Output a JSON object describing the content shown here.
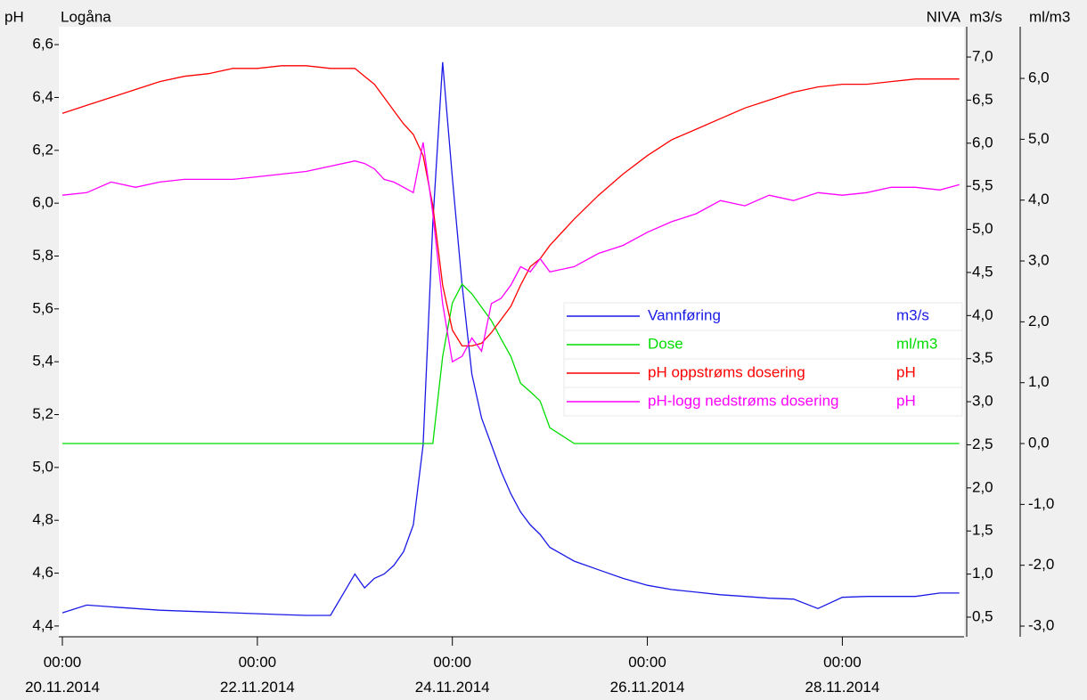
{
  "chart_data": {
    "type": "line",
    "left_title": "pH",
    "title": "Logåna",
    "source": "NIVA",
    "y2_title": "m3/s",
    "y3_title": "ml/m3",
    "x": [
      0,
      0.25,
      0.5,
      0.75,
      1,
      1.25,
      1.5,
      1.75,
      2,
      2.25,
      2.5,
      2.75,
      3,
      3.1,
      3.2,
      3.3,
      3.4,
      3.5,
      3.6,
      3.7,
      3.8,
      3.9,
      4,
      4.1,
      4.2,
      4.3,
      4.4,
      4.5,
      4.6,
      4.7,
      4.8,
      4.9,
      5,
      5.25,
      5.5,
      5.75,
      6,
      6.25,
      6.5,
      6.75,
      7,
      7.25,
      7.5,
      7.75,
      8,
      8.25,
      8.5,
      8.75,
      9,
      9.2
    ],
    "xlim": [
      0,
      9.23
    ],
    "xticks": [
      {
        "value": 0,
        "label": "00:00 20.11.2014"
      },
      {
        "value": 2,
        "label": "00:00 22.11.2014"
      },
      {
        "value": 4,
        "label": "00:00 24.11.2014"
      },
      {
        "value": 6,
        "label": "00:00 26.11.2014"
      },
      {
        "value": 8,
        "label": "00:00 28.11.2014"
      }
    ],
    "ylim": [
      4.366,
      6.661
    ],
    "yticks": [
      {
        "value": 4.4,
        "label": "4,4"
      },
      {
        "value": 4.6,
        "label": "4,6"
      },
      {
        "value": 4.8,
        "label": "4,8"
      },
      {
        "value": 5.0,
        "label": "5,0"
      },
      {
        "value": 5.2,
        "label": "5,2"
      },
      {
        "value": 5.4,
        "label": "5,4"
      },
      {
        "value": 5.6,
        "label": "5,6"
      },
      {
        "value": 5.8,
        "label": "5,8"
      },
      {
        "value": 6.0,
        "label": "6,0"
      },
      {
        "value": 6.2,
        "label": "6,2"
      },
      {
        "value": 6.4,
        "label": "6,4"
      },
      {
        "value": 6.6,
        "label": "6,6"
      }
    ],
    "y2lim": [
      0.293,
      7.331
    ],
    "y2ticks": [
      {
        "value": 0.5,
        "label": "0,5"
      },
      {
        "value": 1.0,
        "label": "1,0"
      },
      {
        "value": 1.5,
        "label": "1,5"
      },
      {
        "value": 2.0,
        "label": "2,0"
      },
      {
        "value": 2.5,
        "label": "2,5"
      },
      {
        "value": 3.0,
        "label": "3,0"
      },
      {
        "value": 3.5,
        "label": "3,5"
      },
      {
        "value": 4.0,
        "label": "4,0"
      },
      {
        "value": 4.5,
        "label": "4,5"
      },
      {
        "value": 5.0,
        "label": "5,0"
      },
      {
        "value": 5.5,
        "label": "5,5"
      },
      {
        "value": 6.0,
        "label": "6,0"
      },
      {
        "value": 6.5,
        "label": "6,5"
      },
      {
        "value": 7.0,
        "label": "7,0"
      }
    ],
    "y3lim": [
      -3.146,
      6.82
    ],
    "y3ticks": [
      {
        "value": -3,
        "label": "-3,0"
      },
      {
        "value": -2,
        "label": "-2,0"
      },
      {
        "value": -1,
        "label": "-1,0"
      },
      {
        "value": 0,
        "label": "0,0"
      },
      {
        "value": 1,
        "label": "1,0"
      },
      {
        "value": 2,
        "label": "2,0"
      },
      {
        "value": 3,
        "label": "3,0"
      },
      {
        "value": 4,
        "label": "4,0"
      },
      {
        "value": 5,
        "label": "5,0"
      },
      {
        "value": 6,
        "label": "6,0"
      }
    ],
    "series": [
      {
        "name": "Vannføring",
        "unit": "m3/s",
        "color": "#1a1ae6",
        "axis": "y2",
        "values": [
          0.55,
          0.64,
          0.62,
          0.6,
          0.58,
          0.57,
          0.56,
          0.55,
          0.54,
          0.53,
          0.52,
          0.52,
          1.0,
          0.84,
          0.95,
          1.0,
          1.1,
          1.26,
          1.57,
          2.5,
          5.08,
          6.94,
          5.6,
          4.36,
          3.32,
          2.81,
          2.5,
          2.19,
          1.93,
          1.72,
          1.57,
          1.46,
          1.31,
          1.15,
          1.05,
          0.95,
          0.87,
          0.82,
          0.79,
          0.76,
          0.74,
          0.72,
          0.71,
          0.6,
          0.73,
          0.74,
          0.74,
          0.74,
          0.78,
          0.78
        ]
      },
      {
        "name": "Dose",
        "unit": "ml/m3",
        "color": "#00dd00",
        "axis": "y3",
        "values": [
          0,
          0,
          0,
          0,
          0,
          0,
          0,
          0,
          0,
          0,
          0,
          0,
          0,
          0,
          0,
          0,
          0,
          0,
          0,
          0,
          0,
          1.43,
          2.31,
          2.62,
          2.46,
          2.24,
          2.02,
          1.72,
          1.43,
          0.99,
          0.85,
          0.7,
          0.26,
          0,
          0,
          0,
          0,
          0,
          0,
          0,
          0,
          0,
          0,
          0,
          0,
          0,
          0,
          0,
          0,
          0
        ]
      },
      {
        "name": "pH oppstrøms dosering",
        "unit": "pH",
        "color": "#ff0000",
        "values": [
          6.34,
          6.37,
          6.4,
          6.43,
          6.46,
          6.48,
          6.49,
          6.51,
          6.51,
          6.52,
          6.52,
          6.51,
          6.51,
          6.48,
          6.45,
          6.4,
          6.35,
          6.3,
          6.26,
          6.18,
          5.99,
          5.69,
          5.52,
          5.46,
          5.46,
          5.47,
          5.51,
          5.56,
          5.61,
          5.69,
          5.76,
          5.79,
          5.84,
          5.94,
          6.03,
          6.11,
          6.18,
          6.24,
          6.28,
          6.32,
          6.36,
          6.39,
          6.42,
          6.44,
          6.45,
          6.45,
          6.46,
          6.47,
          6.47,
          6.47
        ]
      },
      {
        "name": "pH-logg nedstrøms dosering",
        "unit": "pH",
        "color": "#ff00ff",
        "values": [
          6.03,
          6.04,
          6.08,
          6.06,
          6.08,
          6.09,
          6.09,
          6.09,
          6.1,
          6.11,
          6.12,
          6.14,
          6.16,
          6.15,
          6.13,
          6.09,
          6.08,
          6.06,
          6.04,
          6.23,
          5.96,
          5.62,
          5.4,
          5.42,
          5.49,
          5.44,
          5.62,
          5.64,
          5.69,
          5.76,
          5.74,
          5.79,
          5.74,
          5.76,
          5.81,
          5.84,
          5.89,
          5.93,
          5.96,
          6.01,
          5.99,
          6.03,
          6.01,
          6.04,
          6.03,
          6.04,
          6.06,
          6.06,
          6.05,
          6.07
        ]
      }
    ]
  }
}
